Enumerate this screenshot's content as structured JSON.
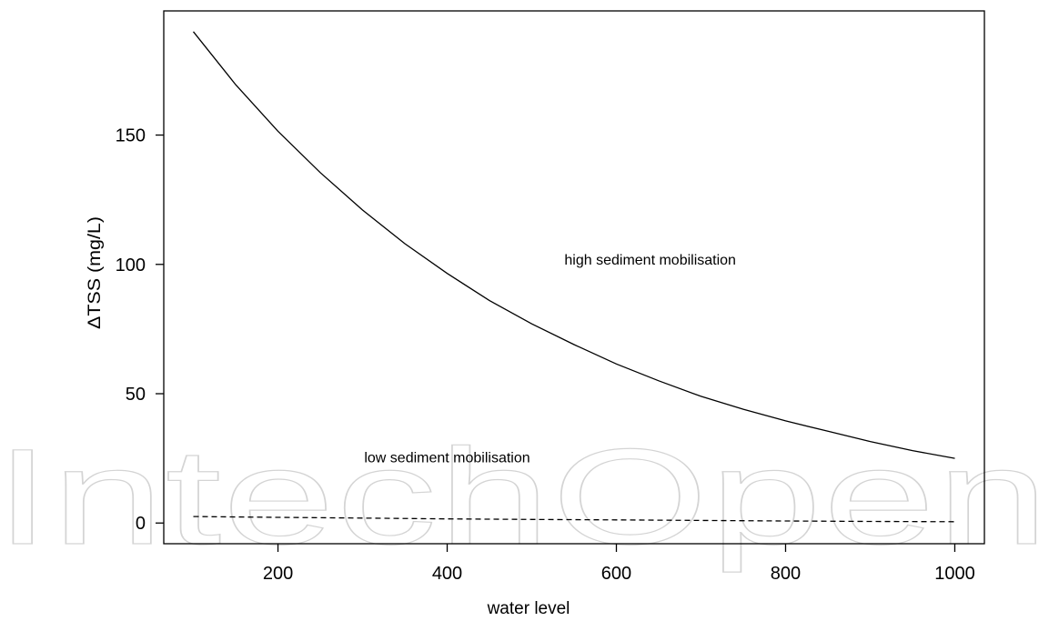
{
  "watermark": "IntechOpen",
  "chart_data": {
    "type": "line",
    "title": "",
    "xlabel": "water level",
    "ylabel": "ΔTSS (mg/L)",
    "xlim": [
      65,
      1035
    ],
    "ylim": [
      -8,
      198
    ],
    "x_ticks": [
      200,
      400,
      600,
      800,
      1000
    ],
    "y_ticks": [
      0,
      50,
      100,
      150
    ],
    "grid": false,
    "legend": "none",
    "series": [
      {
        "line_style": "solid",
        "color": "#000000",
        "x": [
          100,
          150,
          200,
          250,
          300,
          350,
          400,
          450,
          500,
          550,
          600,
          650,
          700,
          750,
          800,
          850,
          900,
          950,
          1000
        ],
        "y": [
          190,
          169.5,
          151.5,
          135.5,
          121,
          108,
          96.5,
          86,
          77,
          69,
          61.5,
          55,
          49,
          44,
          39.5,
          35.5,
          31.5,
          28,
          25
        ]
      },
      {
        "line_style": "dashed",
        "color": "#000000",
        "x": [
          100,
          200,
          300,
          400,
          500,
          600,
          700,
          800,
          900,
          1000
        ],
        "y": [
          2.5,
          2.2,
          1.9,
          1.6,
          1.4,
          1.2,
          1.0,
          0.8,
          0.6,
          0.5
        ]
      }
    ],
    "annotations": [
      {
        "text": "high sediment mobilisation",
        "x": 640,
        "y": 100
      },
      {
        "text": "low sediment mobilisation",
        "x": 400,
        "y": 23.5
      }
    ]
  }
}
